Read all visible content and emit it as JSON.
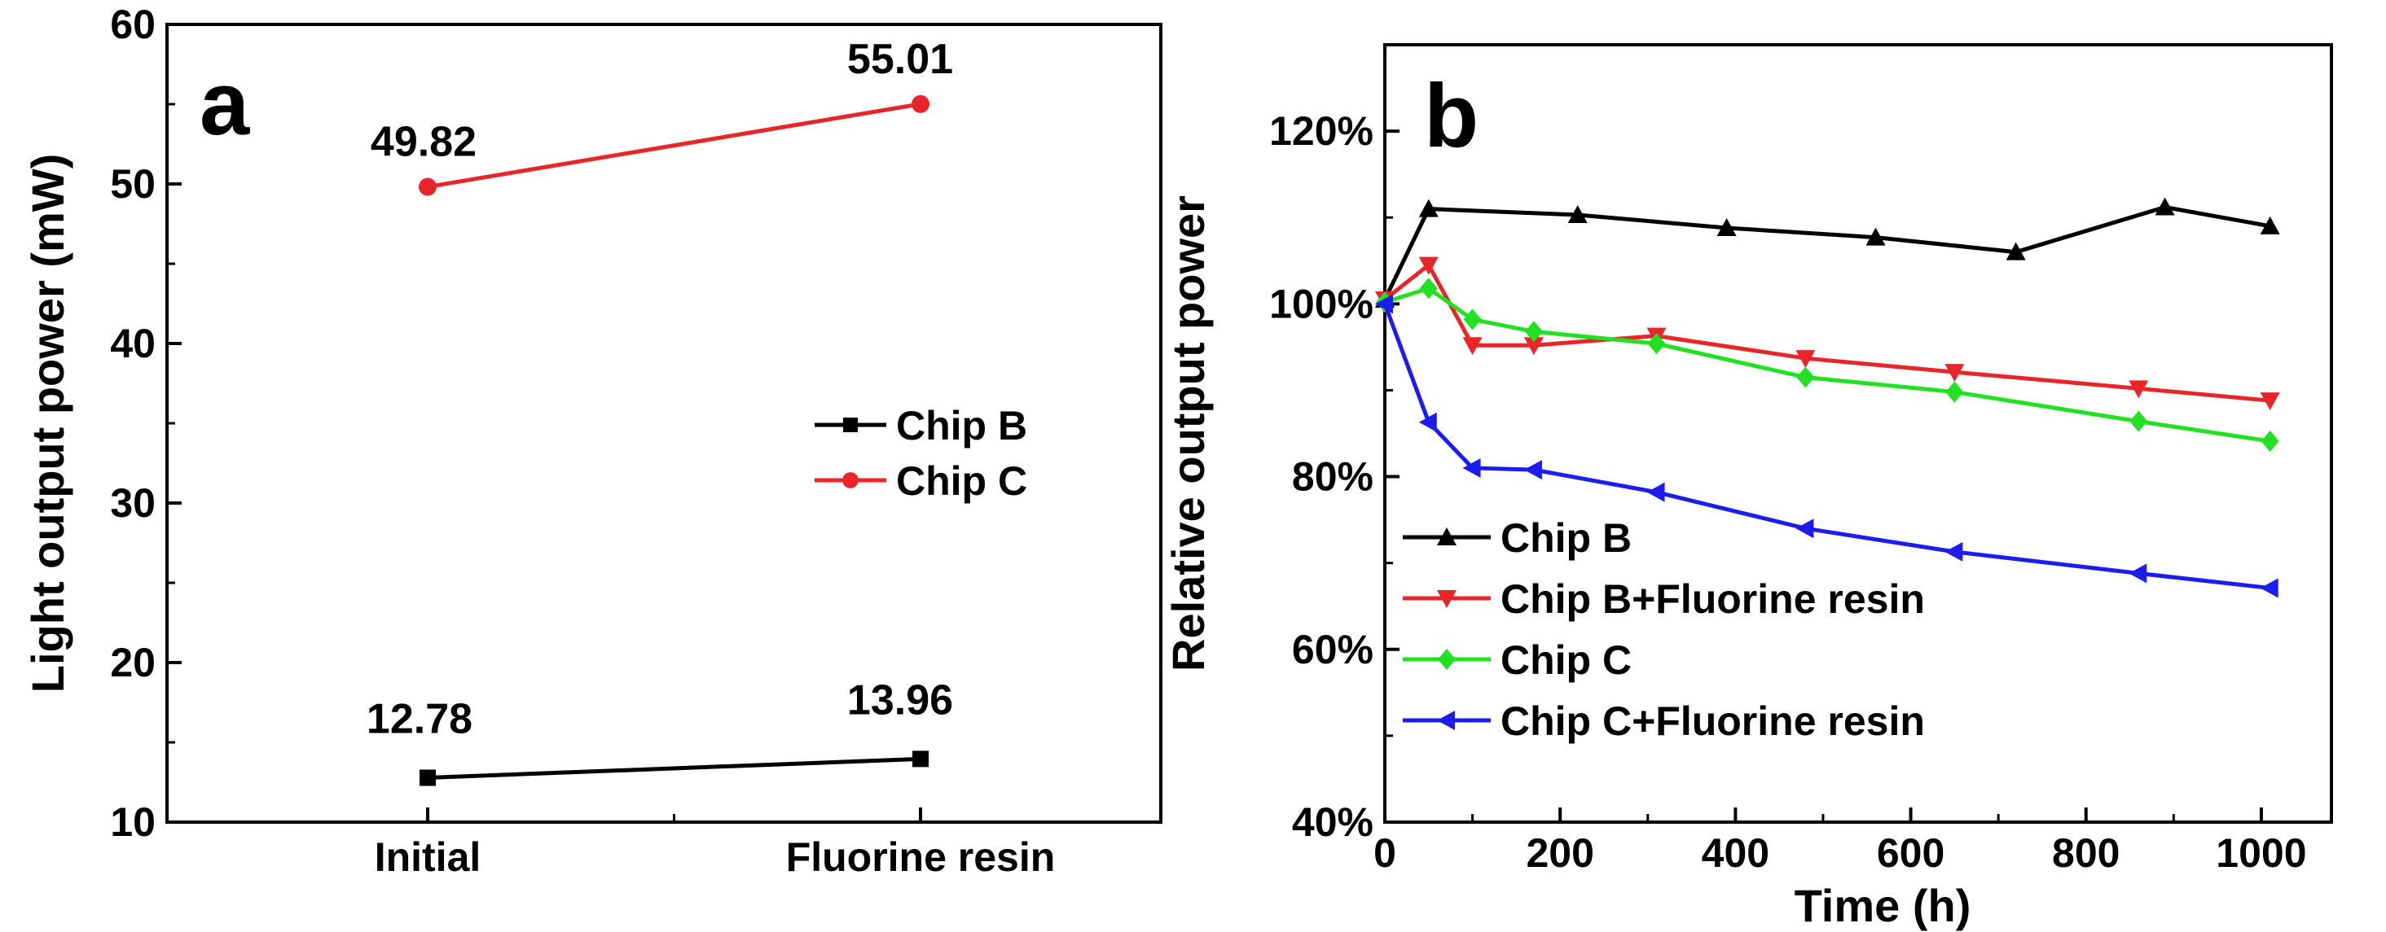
{
  "chart_data": [
    {
      "panel": "a",
      "type": "line",
      "categories": [
        "Initial",
        "Fluorine resin"
      ],
      "series": [
        {
          "name": "Chip B",
          "color": "#000000",
          "marker": "square",
          "values": [
            12.78,
            13.96
          ],
          "labels": [
            "12.78",
            "13.96"
          ]
        },
        {
          "name": "Chip C",
          "color": "#e8262a",
          "marker": "circle",
          "values": [
            49.82,
            55.01
          ],
          "labels": [
            "49.82",
            "55.01"
          ]
        }
      ],
      "xlabel": "",
      "ylabel": "Light output power (mW)",
      "ylim": [
        10,
        60
      ],
      "yticks": [
        10,
        20,
        30,
        40,
        50,
        60
      ],
      "ytick_labels": [
        "10",
        "20",
        "30",
        "40",
        "50",
        "60"
      ],
      "legend_position": "right-middle",
      "grid": false
    },
    {
      "panel": "b",
      "type": "line",
      "x": [
        0,
        50,
        100,
        170,
        220,
        310,
        390,
        480,
        560,
        650,
        720,
        860,
        890,
        1010
      ],
      "series": [
        {
          "name": "Chip B",
          "color": "#000000",
          "marker": "triangle-up",
          "x": [
            0,
            50,
            220,
            390,
            560,
            720,
            890,
            1010
          ],
          "values": [
            100.5,
            111,
            110.3,
            108.8,
            107.7,
            106,
            111.2,
            109
          ]
        },
        {
          "name": "Chip B+Fluorine resin",
          "color": "#e8262a",
          "marker": "triangle-down",
          "x": [
            0,
            50,
            100,
            170,
            310,
            480,
            650,
            860,
            1010
          ],
          "values": [
            100.5,
            104.5,
            95.2,
            95.2,
            96.3,
            93.7,
            92.1,
            90.2,
            88.8
          ]
        },
        {
          "name": "Chip C",
          "color": "#22e022",
          "marker": "diamond",
          "x": [
            0,
            50,
            100,
            170,
            310,
            480,
            650,
            860,
            1010
          ],
          "values": [
            100.2,
            101.8,
            98.2,
            96.8,
            95.4,
            91.5,
            89.8,
            86.4,
            84.1
          ]
        },
        {
          "name": "Chip C+Fluorine resin",
          "color": "#1c1cef",
          "marker": "triangle-left",
          "x": [
            0,
            50,
            100,
            170,
            310,
            480,
            650,
            860,
            1010
          ],
          "values": [
            100,
            86.3,
            81,
            80.8,
            78.2,
            74,
            71.3,
            68.8,
            67.1
          ]
        }
      ],
      "xlabel": "Time (h)",
      "ylabel": "Relative output power",
      "xlim": [
        0,
        1080
      ],
      "xticks": [
        0,
        200,
        400,
        600,
        800,
        1000
      ],
      "xtick_labels": [
        "0",
        "200",
        "400",
        "600",
        "800",
        "1000"
      ],
      "ylim": [
        40,
        130
      ],
      "yticks": [
        40,
        60,
        80,
        100,
        120
      ],
      "ytick_labels": [
        "40%",
        "60%",
        "80%",
        "100%",
        "120%"
      ],
      "legend_position": "bottom-left",
      "grid": false
    }
  ]
}
